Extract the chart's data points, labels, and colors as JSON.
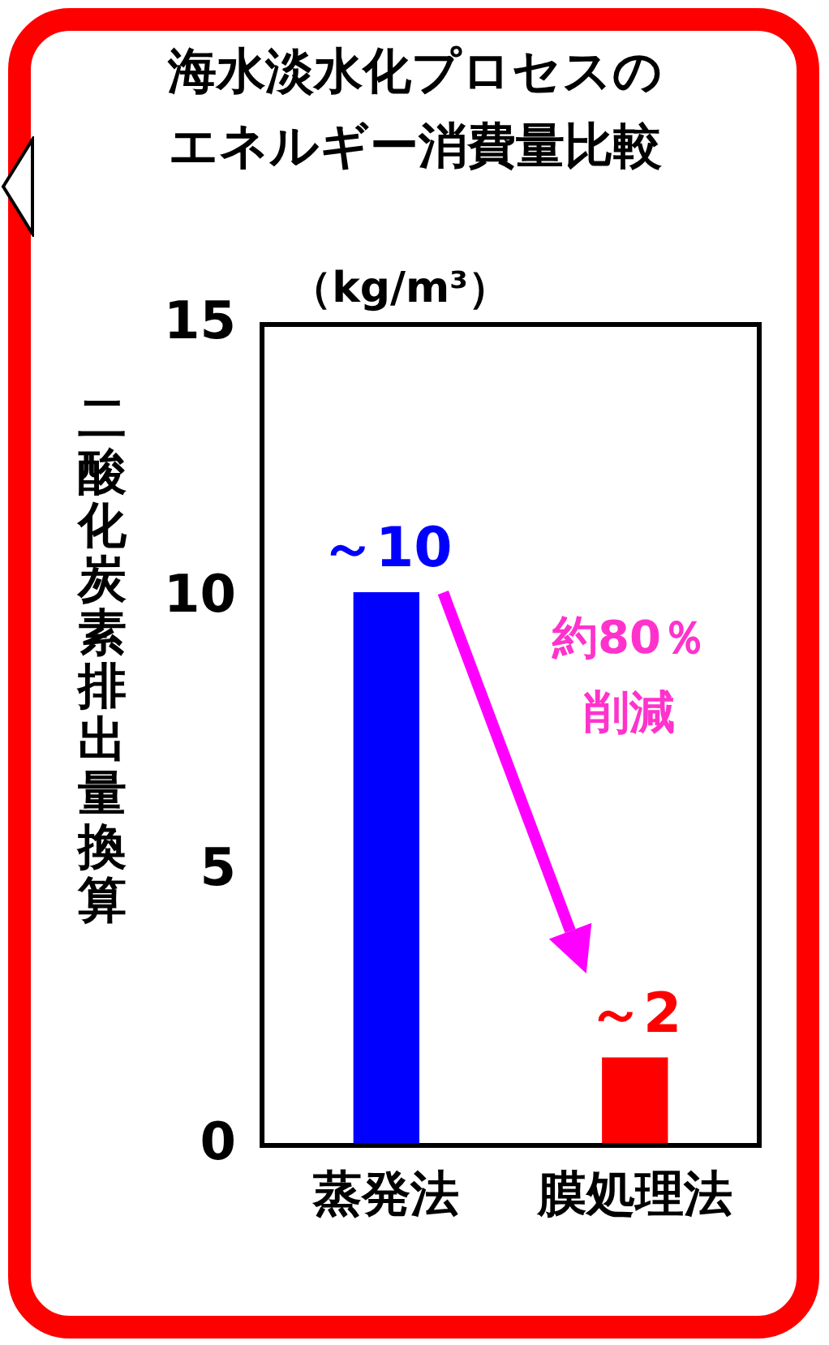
{
  "chart_data": {
    "type": "bar",
    "title": "海水淡水化プロセスのエネルギー消費量比較",
    "ylabel": "二酸化炭素排出量換算",
    "categories": [
      "蒸発法",
      "膜処理法"
    ],
    "values": [
      10.1,
      1.6
    ],
    "colors": [
      "#0000ff",
      "#ff0000"
    ],
    "value_labels": [
      "～10",
      "～2"
    ],
    "ylim": [
      0,
      15
    ],
    "yticks": [
      0,
      5,
      10,
      15
    ],
    "grid": false,
    "legend": false,
    "annotations": [
      "（kg/m³）",
      "約80％削減"
    ]
  }
}
